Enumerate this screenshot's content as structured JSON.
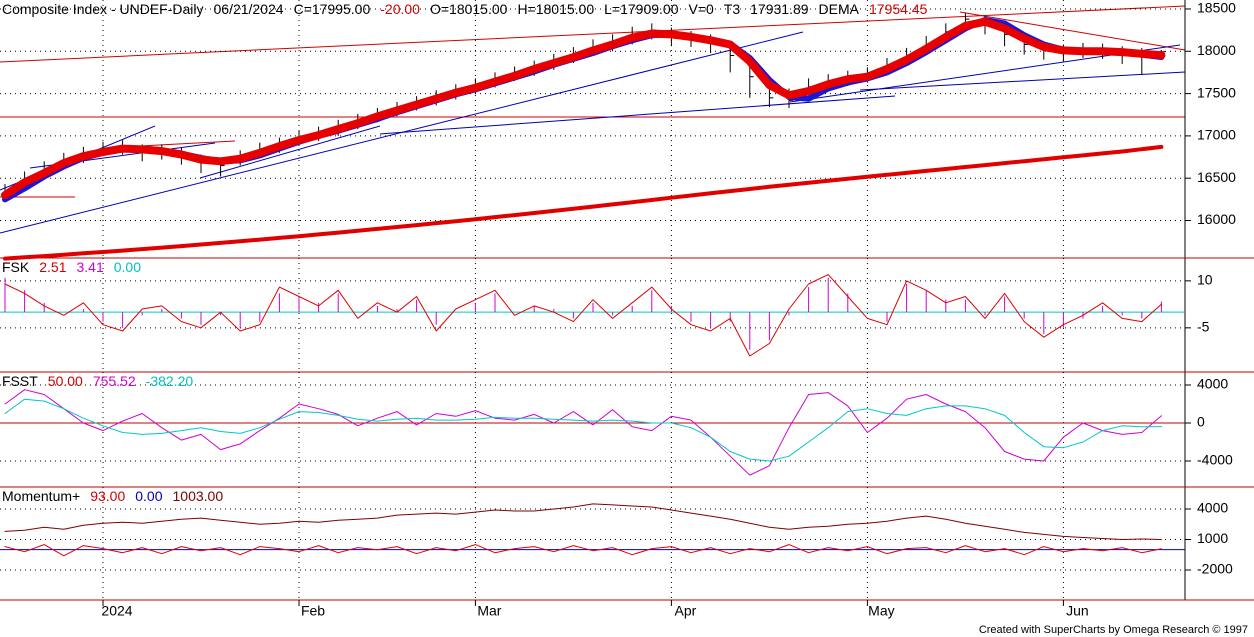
{
  "chart_data": [
    {
      "type": "ohlc",
      "header": [
        {
          "text": "Composite Index - UNDEF-Daily",
          "color": "#000000"
        },
        {
          "text": "06/21/2024",
          "color": "#000000"
        },
        {
          "text": "C=17995.00",
          "color": "#000000"
        },
        {
          "text": "-20.00",
          "color": "#d00000"
        },
        {
          "text": "O=18015.00",
          "color": "#000000"
        },
        {
          "text": "H=18015.00",
          "color": "#000000"
        },
        {
          "text": "L=17909.00",
          "color": "#000000"
        },
        {
          "text": "V=0",
          "color": "#000000"
        },
        {
          "text": "T3",
          "color": "#000000"
        },
        {
          "text": "17931.89",
          "color": "#000000"
        },
        {
          "text": "DEMA",
          "color": "#000000"
        },
        {
          "text": "17954.45",
          "color": "#d00000"
        }
      ],
      "ylim": [
        15557,
        18606
      ],
      "yticks": [
        16000,
        16500,
        17000,
        17500,
        18000,
        18500
      ],
      "grid": true,
      "bar_color": "#000000",
      "high": [
        16430,
        16580,
        16700,
        16800,
        16870,
        16930,
        16950,
        16900,
        16900,
        16860,
        16780,
        16740,
        16830,
        16920,
        16980,
        17060,
        17110,
        17190,
        17260,
        17330,
        17400,
        17470,
        17540,
        17610,
        17680,
        17750,
        17820,
        17890,
        17970,
        18050,
        18140,
        18200,
        18290,
        18330,
        18280,
        18240,
        18200,
        18100,
        17850,
        17600,
        17560,
        17680,
        17730,
        17770,
        17810,
        17920,
        18040,
        18180,
        18330,
        18450,
        18420,
        18300,
        18180,
        18110,
        18080,
        18100,
        18090,
        18060,
        18040,
        18015
      ],
      "low": [
        16250,
        16400,
        16520,
        16620,
        16680,
        16760,
        16780,
        16700,
        16720,
        16660,
        16560,
        16520,
        16650,
        16740,
        16800,
        16880,
        16940,
        17000,
        17080,
        17160,
        17230,
        17300,
        17360,
        17430,
        17500,
        17570,
        17650,
        17710,
        17780,
        17860,
        17950,
        18000,
        18080,
        18140,
        18060,
        18050,
        17980,
        17750,
        17450,
        17340,
        17330,
        17480,
        17550,
        17590,
        17630,
        17730,
        17850,
        17980,
        18120,
        18280,
        18200,
        18060,
        17960,
        17900,
        17880,
        17920,
        17910,
        17850,
        17720,
        17909
      ],
      "close": [
        16350,
        16500,
        16600,
        16720,
        16780,
        16850,
        16870,
        16800,
        16830,
        16760,
        16680,
        16650,
        16760,
        16830,
        16900,
        16980,
        17030,
        17100,
        17180,
        17250,
        17320,
        17390,
        17460,
        17520,
        17600,
        17660,
        17740,
        17800,
        17880,
        17950,
        18050,
        18100,
        18200,
        18250,
        18180,
        18150,
        18120,
        17950,
        17700,
        17450,
        17420,
        17580,
        17640,
        17680,
        17720,
        17830,
        17950,
        18080,
        18230,
        18380,
        18320,
        18200,
        18080,
        18020,
        17980,
        18030,
        18010,
        17960,
        17940,
        17995
      ],
      "series": [
        {
          "color": "#e00000",
          "width": 4,
          "values": [
            15550,
            15565,
            15580,
            15596,
            15612,
            15628,
            15645,
            15662,
            15680,
            15698,
            15717,
            15736,
            15755,
            15775,
            15795,
            15815,
            15836,
            15857,
            15879,
            15901,
            15923,
            15946,
            15969,
            15992,
            16016,
            16040,
            16064,
            16089,
            16114,
            16139,
            16165,
            16191,
            16217,
            16243,
            16270,
            16296,
            16322,
            16348,
            16373,
            16398,
            16422,
            16446,
            16470,
            16494,
            16517,
            16540,
            16563,
            16586,
            16609,
            16632,
            16655,
            16678,
            16701,
            16724,
            16747,
            16770,
            16793,
            16816,
            16843,
            16870
          ]
        },
        {
          "color": "#1818d8",
          "width": 6,
          "values": [
            16250,
            16380,
            16520,
            16640,
            16740,
            16800,
            16840,
            16850,
            16830,
            16790,
            16740,
            16700,
            16710,
            16770,
            16850,
            16930,
            17000,
            17060,
            17130,
            17200,
            17280,
            17350,
            17420,
            17490,
            17550,
            17620,
            17690,
            17760,
            17840,
            17910,
            17980,
            18060,
            18130,
            18190,
            18200,
            18170,
            18140,
            18090,
            17920,
            17660,
            17460,
            17440,
            17560,
            17630,
            17680,
            17750,
            17860,
            17990,
            18130,
            18270,
            18370,
            18330,
            18190,
            18080,
            18020,
            18000,
            17995,
            17985,
            17960,
            17931.89
          ]
        },
        {
          "color": "#e80000",
          "width": 8,
          "values": [
            16300,
            16450,
            16560,
            16680,
            16760,
            16810,
            16850,
            16840,
            16820,
            16780,
            16720,
            16700,
            16730,
            16800,
            16880,
            16950,
            17010,
            17080,
            17150,
            17230,
            17300,
            17370,
            17440,
            17510,
            17570,
            17640,
            17710,
            17790,
            17860,
            17930,
            18010,
            18080,
            18160,
            18210,
            18200,
            18170,
            18130,
            18080,
            17880,
            17600,
            17480,
            17530,
            17610,
            17670,
            17700,
            17790,
            17900,
            18030,
            18170,
            18300,
            18350,
            18270,
            18150,
            18050,
            18010,
            18000,
            18000,
            17990,
            17970,
            17954.45
          ]
        }
      ]
    },
    {
      "type": "line",
      "header": [
        {
          "text": "FSK",
          "color": "#000000"
        },
        {
          "text": "2.51",
          "color": "#d00000"
        },
        {
          "text": "3.41",
          "color": "#d000d0"
        },
        {
          "text": "0.00",
          "color": "#00c0c0"
        }
      ],
      "ylim": [
        -19.1,
        17.3
      ],
      "yticks": [
        10,
        -5
      ],
      "grid": true,
      "hline": {
        "value": 0,
        "color": "#00c8c8"
      },
      "series": [
        {
          "color": "#d000d0",
          "style": "histogram",
          "values": [
            11,
            7,
            3,
            0,
            1,
            -3,
            -5,
            -1,
            1,
            -2,
            -4,
            -1,
            -5,
            -3,
            6,
            5,
            3,
            6,
            0,
            2,
            1,
            4,
            -4,
            0,
            3,
            6,
            0,
            2,
            1,
            -2,
            3,
            -1,
            2,
            7,
            2,
            -3,
            -5,
            -3,
            -12,
            -9,
            -1,
            8,
            11,
            6,
            0,
            -3,
            9,
            7,
            4,
            4,
            -1,
            5,
            -2,
            -7,
            -5,
            -2,
            2,
            -1,
            -2,
            3.41
          ]
        },
        {
          "color": "#e00000",
          "style": "line",
          "values": [
            9,
            6,
            2,
            -1,
            3,
            -4,
            -6,
            1,
            2,
            -3,
            -5,
            0,
            -6,
            -4,
            8,
            5,
            2,
            7,
            -2,
            3,
            0,
            5,
            -6,
            1,
            4,
            7,
            -1,
            2,
            0,
            -3,
            4,
            -2,
            3,
            8,
            1,
            -4,
            -6,
            -2,
            -14,
            -10,
            1,
            9,
            12,
            5,
            -2,
            -4,
            10,
            7,
            3,
            5,
            -2,
            6,
            -3,
            -8,
            -4,
            -1,
            3,
            -2,
            -3,
            2.51
          ]
        }
      ]
    },
    {
      "type": "line",
      "header": [
        {
          "text": "FSST",
          "color": "#000000"
        },
        {
          "text": "50.00",
          "color": "#d00000"
        },
        {
          "text": "755.52",
          "color": "#d000d0"
        },
        {
          "text": "-382.20",
          "color": "#00c0c0"
        }
      ],
      "ylim": [
        -6737,
        5368
      ],
      "yticks": [
        4000,
        0,
        -4000
      ],
      "grid": true,
      "hline": {
        "value": 0,
        "color": "#c00000"
      },
      "series": [
        {
          "color": "#d000d0",
          "style": "line",
          "values": [
            2000,
            3500,
            3000,
            1500,
            0,
            -800,
            200,
            1000,
            -500,
            -1800,
            -1200,
            -2800,
            -2200,
            -800,
            500,
            2000,
            1500,
            900,
            -300,
            500,
            1200,
            -200,
            1000,
            700,
            1300,
            500,
            300,
            900,
            0,
            1200,
            -200,
            1400,
            -400,
            -800,
            700,
            300,
            -1500,
            -3500,
            -5500,
            -4500,
            -500,
            3000,
            3200,
            1800,
            -1000,
            500,
            2500,
            3000,
            2000,
            1200,
            -500,
            -3000,
            -3800,
            -4000,
            -1500,
            0,
            -800,
            -1200,
            -1000,
            755.52
          ]
        },
        {
          "color": "#00c8c8",
          "style": "line",
          "values": [
            1000,
            2500,
            2300,
            1500,
            500,
            -300,
            -1000,
            -1200,
            -1100,
            -800,
            -500,
            -900,
            -1100,
            -500,
            400,
            1200,
            1100,
            800,
            400,
            200,
            400,
            500,
            300,
            300,
            400,
            600,
            500,
            500,
            400,
            300,
            200,
            300,
            200,
            0,
            0,
            -500,
            -1500,
            -3000,
            -3800,
            -4000,
            -3500,
            -2000,
            -500,
            1200,
            1500,
            1000,
            800,
            1500,
            1800,
            1800,
            1500,
            800,
            -1000,
            -2500,
            -2600,
            -2000,
            -800,
            -300,
            -400,
            -382.2
          ]
        }
      ]
    },
    {
      "type": "line",
      "header": [
        {
          "text": "Momentum+",
          "color": "#000000"
        },
        {
          "text": "93.00",
          "color": "#d00000"
        },
        {
          "text": "0.00",
          "color": "#0000c0"
        },
        {
          "text": "1003.00",
          "color": "#800000"
        }
      ],
      "ylim": [
        -4951,
        6164
      ],
      "yticks": [
        4000,
        1000,
        -2000
      ],
      "grid": true,
      "hline": {
        "value": 0,
        "color": "#0000c0"
      },
      "categories": [
        null,
        null,
        null,
        null,
        null,
        "2024",
        null,
        null,
        null,
        null,
        null,
        null,
        null,
        null,
        null,
        "Feb",
        null,
        null,
        null,
        null,
        null,
        null,
        null,
        null,
        "Mar",
        null,
        null,
        null,
        null,
        null,
        null,
        null,
        null,
        null,
        "Apr",
        null,
        null,
        null,
        null,
        null,
        null,
        null,
        null,
        null,
        "May",
        null,
        null,
        null,
        null,
        null,
        null,
        null,
        null,
        null,
        "Jun",
        null,
        null,
        null,
        null,
        null
      ],
      "series": [
        {
          "color": "#e00000",
          "style": "line",
          "values": [
            300,
            -200,
            500,
            -600,
            400,
            100,
            -300,
            200,
            -400,
            300,
            -100,
            200,
            -500,
            300,
            100,
            -200,
            400,
            -300,
            200,
            0,
            300,
            -400,
            200,
            -100,
            500,
            -300,
            100,
            300,
            -200,
            400,
            -100,
            200,
            -500,
            100,
            300,
            -300,
            200,
            -400,
            100,
            -200,
            500,
            -300,
            200,
            -100,
            300,
            -400,
            100,
            200,
            -300,
            400,
            -200,
            100,
            -500,
            300,
            -200,
            100,
            -100,
            200,
            -300,
            93
          ]
        },
        {
          "color": "#800000",
          "style": "line",
          "values": [
            1800,
            1900,
            2200,
            2000,
            2400,
            2600,
            2700,
            2600,
            2800,
            3000,
            3100,
            2900,
            2700,
            2500,
            2600,
            2800,
            2700,
            2900,
            3000,
            3100,
            3400,
            3500,
            3600,
            3500,
            3700,
            3900,
            3800,
            3800,
            4000,
            4200,
            4500,
            4400,
            4300,
            4200,
            3900,
            3600,
            3300,
            3000,
            2600,
            2200,
            2000,
            2200,
            2300,
            2500,
            2600,
            2800,
            3100,
            3300,
            3000,
            2600,
            2300,
            2000,
            1700,
            1500,
            1300,
            1200,
            1100,
            1000,
            1050,
            1003
          ]
        }
      ]
    }
  ],
  "footer": "Created with SuperCharts by Omega Research © 1997"
}
